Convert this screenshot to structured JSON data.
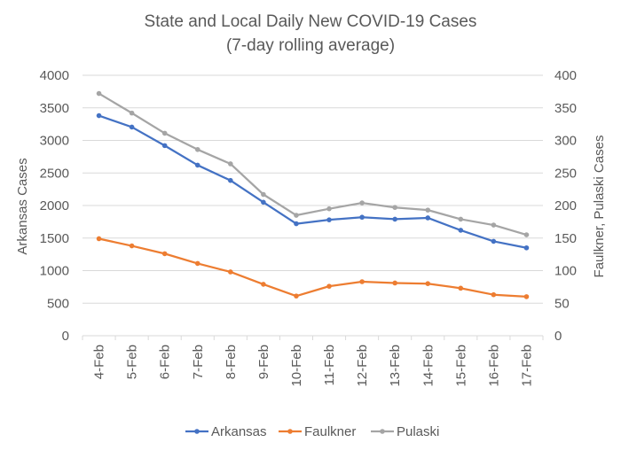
{
  "chart_data": {
    "type": "line",
    "title": "State and Local Daily New COVID-19 Cases",
    "subtitle": "(7-day rolling average)",
    "xlabel": "",
    "ylabel": "Arkansas Cases",
    "y2label": "Faulkner, Pulaski Cases",
    "categories": [
      "4-Feb",
      "5-Feb",
      "6-Feb",
      "7-Feb",
      "8-Feb",
      "9-Feb",
      "10-Feb",
      "11-Feb",
      "12-Feb",
      "13-Feb",
      "14-Feb",
      "15-Feb",
      "16-Feb",
      "17-Feb"
    ],
    "ylim": [
      0,
      4000
    ],
    "y2lim": [
      0,
      400
    ],
    "yticks": [
      "0",
      "500",
      "1000",
      "1500",
      "2000",
      "2500",
      "3000",
      "3500",
      "4000"
    ],
    "y2ticks": [
      "0",
      "50",
      "100",
      "150",
      "200",
      "250",
      "300",
      "350",
      "400"
    ],
    "grid": true,
    "legend_position": "bottom",
    "series": [
      {
        "name": "Arkansas",
        "axis": "left",
        "color": "#4472C4",
        "values": [
          3380,
          3205,
          2920,
          2620,
          2385,
          2050,
          1720,
          1780,
          1820,
          1790,
          1810,
          1620,
          1450,
          1350
        ]
      },
      {
        "name": "Faulkner",
        "axis": "right",
        "color": "#ED7D31",
        "values": [
          149,
          138,
          126,
          111,
          98,
          79,
          61,
          76,
          83,
          81,
          80,
          73,
          63,
          60
        ]
      },
      {
        "name": "Pulaski",
        "axis": "right",
        "color": "#A5A5A5",
        "values": [
          372,
          342,
          311,
          286,
          264,
          217,
          185,
          195,
          204,
          197,
          193,
          179,
          170,
          155
        ]
      }
    ]
  }
}
